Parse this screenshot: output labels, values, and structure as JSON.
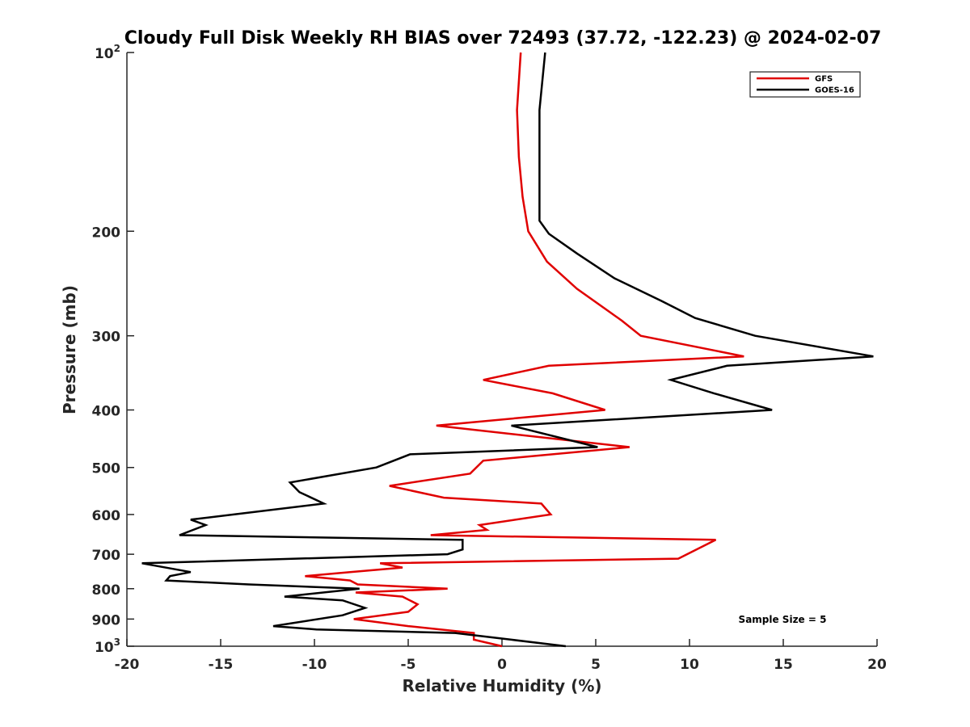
{
  "chart_data": {
    "type": "line",
    "title": "Cloudy Full Disk Weekly RH BIAS over 72493 (37.72, -122.23) @ 2024-02-07",
    "xlabel": "Relative Humidity (%)",
    "ylabel": "Pressure (mb)",
    "xlim": [
      -20,
      20
    ],
    "ylim": [
      100,
      1000
    ],
    "yscale": "log",
    "yreversed": true,
    "grid": false,
    "legend_position": "top-right",
    "x_ticks": [
      {
        "value": -20,
        "label": "-20"
      },
      {
        "value": -15,
        "label": "-15"
      },
      {
        "value": -10,
        "label": "-10"
      },
      {
        "value": -5,
        "label": "-5"
      },
      {
        "value": 0,
        "label": "0"
      },
      {
        "value": 5,
        "label": "5"
      },
      {
        "value": 10,
        "label": "10"
      },
      {
        "value": 15,
        "label": "15"
      },
      {
        "value": 20,
        "label": "20"
      }
    ],
    "y_ticks": [
      {
        "value": 100,
        "label": "10",
        "sup": "2"
      },
      {
        "value": 200,
        "label": "200",
        "sup": ""
      },
      {
        "value": 300,
        "label": "300",
        "sup": ""
      },
      {
        "value": 400,
        "label": "400",
        "sup": ""
      },
      {
        "value": 500,
        "label": "500",
        "sup": ""
      },
      {
        "value": 600,
        "label": "600",
        "sup": ""
      },
      {
        "value": 700,
        "label": "700",
        "sup": ""
      },
      {
        "value": 800,
        "label": "800",
        "sup": ""
      },
      {
        "value": 900,
        "label": "900",
        "sup": ""
      },
      {
        "value": 1000,
        "label": "10",
        "sup": "3"
      }
    ],
    "annotation": "Sample Size = 5",
    "series": [
      {
        "name": "GFS",
        "color": "#e00000",
        "points": [
          [
            0.0,
            1000
          ],
          [
            -1.5,
            975
          ],
          [
            -1.5,
            950
          ],
          [
            -5.0,
            925
          ],
          [
            -7.9,
            900
          ],
          [
            -5.0,
            875
          ],
          [
            -4.5,
            850
          ],
          [
            -5.3,
            825
          ],
          [
            -7.8,
            812
          ],
          [
            -2.9,
            800
          ],
          [
            -7.7,
            787
          ],
          [
            -8.1,
            775
          ],
          [
            -10.5,
            762
          ],
          [
            -8.1,
            750
          ],
          [
            -5.3,
            737
          ],
          [
            -6.5,
            725
          ],
          [
            9.4,
            712
          ],
          [
            11.4,
            662
          ],
          [
            -3.8,
            650
          ],
          [
            -0.8,
            637
          ],
          [
            -1.2,
            625
          ],
          [
            2.6,
            600
          ],
          [
            2.1,
            575
          ],
          [
            -3.1,
            562
          ],
          [
            -6.0,
            537
          ],
          [
            -1.7,
            512
          ],
          [
            -1.0,
            487
          ],
          [
            6.8,
            462
          ],
          [
            -3.5,
            425
          ],
          [
            5.5,
            400
          ],
          [
            2.7,
            375
          ],
          [
            -1.0,
            356
          ],
          [
            2.5,
            337
          ],
          [
            12.9,
            325
          ],
          [
            7.4,
            300
          ],
          [
            6.4,
            283
          ],
          [
            4.0,
            250
          ],
          [
            2.4,
            225
          ],
          [
            1.4,
            200
          ],
          [
            1.1,
            175
          ],
          [
            0.9,
            150
          ],
          [
            0.8,
            125
          ],
          [
            1.0,
            100
          ]
        ]
      },
      {
        "name": "GOES-16",
        "color": "#000000",
        "points": [
          [
            3.4,
            1000
          ],
          [
            0.5,
            975
          ],
          [
            -2.5,
            950
          ],
          [
            -9.9,
            937
          ],
          [
            -12.2,
            925
          ],
          [
            -8.5,
            887
          ],
          [
            -7.3,
            862
          ],
          [
            -8.5,
            837
          ],
          [
            -11.6,
            825
          ],
          [
            -7.6,
            800
          ],
          [
            -13.5,
            787
          ],
          [
            -17.9,
            775
          ],
          [
            -17.7,
            762
          ],
          [
            -16.6,
            750
          ],
          [
            -19.2,
            725
          ],
          [
            -2.9,
            700
          ],
          [
            -2.1,
            687
          ],
          [
            -2.1,
            662
          ],
          [
            -17.2,
            650
          ],
          [
            -15.8,
            625
          ],
          [
            -16.6,
            612
          ],
          [
            -9.5,
            575
          ],
          [
            -10.8,
            550
          ],
          [
            -11.3,
            530
          ],
          [
            -6.7,
            500
          ],
          [
            -4.9,
            475
          ],
          [
            5.1,
            462
          ],
          [
            0.5,
            425
          ],
          [
            14.4,
            400
          ],
          [
            11.3,
            375
          ],
          [
            9.0,
            356
          ],
          [
            12.0,
            337
          ],
          [
            19.8,
            325
          ],
          [
            13.5,
            300
          ],
          [
            10.3,
            280
          ],
          [
            8.5,
            262
          ],
          [
            6.0,
            240
          ],
          [
            4.0,
            218
          ],
          [
            2.5,
            202
          ],
          [
            2.0,
            192
          ],
          [
            2.0,
            175
          ],
          [
            2.0,
            150
          ],
          [
            2.0,
            125
          ],
          [
            2.3,
            100
          ]
        ]
      }
    ]
  }
}
